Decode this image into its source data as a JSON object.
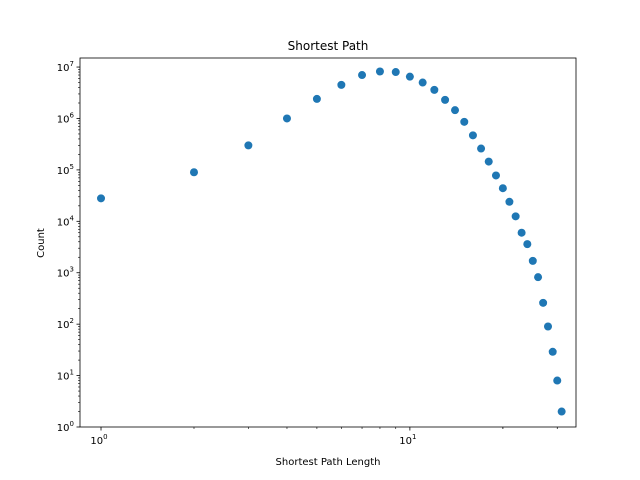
{
  "chart_data": {
    "type": "scatter",
    "title": "Shortest Path",
    "xlabel": "Shortest Path Length",
    "ylabel": "Count",
    "xscale": "log",
    "yscale": "log",
    "xlim": [
      0.855,
      34.5
    ],
    "ylim": [
      1,
      15000000
    ],
    "grid": false,
    "marker_color": "#1f77b4",
    "x_ticks": [
      {
        "base": "10",
        "exp": "0"
      },
      {
        "base": "10",
        "exp": "1"
      }
    ],
    "y_ticks": [
      {
        "base": "10",
        "exp": "0"
      },
      {
        "base": "10",
        "exp": "1"
      },
      {
        "base": "10",
        "exp": "2"
      },
      {
        "base": "10",
        "exp": "3"
      },
      {
        "base": "10",
        "exp": "4"
      },
      {
        "base": "10",
        "exp": "5"
      },
      {
        "base": "10",
        "exp": "6"
      },
      {
        "base": "10",
        "exp": "7"
      }
    ],
    "points": [
      {
        "x": 1,
        "y": 28000
      },
      {
        "x": 2,
        "y": 90000
      },
      {
        "x": 3,
        "y": 300000
      },
      {
        "x": 4,
        "y": 1000000
      },
      {
        "x": 5,
        "y": 2400000
      },
      {
        "x": 6,
        "y": 4500000
      },
      {
        "x": 7,
        "y": 7000000
      },
      {
        "x": 8,
        "y": 8200000
      },
      {
        "x": 9,
        "y": 8000000
      },
      {
        "x": 10,
        "y": 6500000
      },
      {
        "x": 11,
        "y": 5000000
      },
      {
        "x": 12,
        "y": 3600000
      },
      {
        "x": 13,
        "y": 2300000
      },
      {
        "x": 14,
        "y": 1450000
      },
      {
        "x": 15,
        "y": 860000
      },
      {
        "x": 16,
        "y": 470000
      },
      {
        "x": 17,
        "y": 260000
      },
      {
        "x": 18,
        "y": 145000
      },
      {
        "x": 19,
        "y": 78000
      },
      {
        "x": 20,
        "y": 44000
      },
      {
        "x": 21,
        "y": 24000
      },
      {
        "x": 22,
        "y": 12500
      },
      {
        "x": 23,
        "y": 6000
      },
      {
        "x": 24,
        "y": 3600
      },
      {
        "x": 25,
        "y": 1700
      },
      {
        "x": 26,
        "y": 820
      },
      {
        "x": 27,
        "y": 260
      },
      {
        "x": 28,
        "y": 90
      },
      {
        "x": 29,
        "y": 29
      },
      {
        "x": 30,
        "y": 8
      },
      {
        "x": 31,
        "y": 2
      }
    ]
  }
}
